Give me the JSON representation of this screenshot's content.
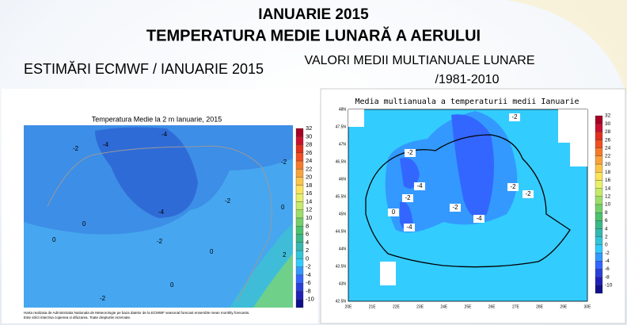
{
  "header": {
    "line1": "IANUARIE 2015",
    "line2": "TEMPERATURA MEDIE LUNARĂ A AERULUI"
  },
  "left": {
    "heading": "ESTIMĂRI ECMWF / IANUARIE 2015",
    "map_title": "Temperatura Medie la 2 m Ianuarie, 2015",
    "colorbar": [
      "32",
      "30",
      "28",
      "26",
      "24",
      "22",
      "20",
      "18",
      "16",
      "14",
      "12",
      "10",
      "8",
      "6",
      "4",
      "2",
      "0",
      "-2",
      "-4",
      "-6",
      "-8",
      "-10"
    ],
    "contour_labels": [
      "-2",
      "-4",
      "-4",
      "-2",
      "-4",
      "-2",
      "0",
      "0",
      "0",
      "-2",
      "0",
      "0",
      "-2",
      "2"
    ],
    "footnote": [
      "Harta realizata de Administratia Nationala de Meteorologie pe baza datelor de la ECMWF seasonal forecast ensemble mean monthly forecasts.",
      "Este strict interzisa copierea si difuzarea. Toate drepturile rezervate."
    ]
  },
  "right": {
    "heading_lines": [
      "VALORI MEDII MULTIANUALE LUNARE",
      "/1981-2010"
    ],
    "map_title": "Media multianuala a temperaturii medii Ianuarie",
    "lat_labels": [
      "48N",
      "47.5N",
      "47N",
      "46.5N",
      "46N",
      "45.5N",
      "45N",
      "44.5N",
      "44N",
      "43.5N",
      "43N",
      "42.5N"
    ],
    "lon_labels": [
      "20E",
      "21E",
      "22E",
      "23E",
      "24E",
      "25E",
      "26E",
      "27E",
      "28E",
      "29E",
      "30E"
    ],
    "colorbar": [
      "32",
      "30",
      "28",
      "26",
      "24",
      "22",
      "20",
      "18",
      "16",
      "14",
      "12",
      "10",
      "8",
      "6",
      "4",
      "2",
      "0",
      "-2",
      "-4",
      "-6",
      "-8",
      "-10"
    ],
    "contour_labels": [
      "-2",
      "-2",
      "-4",
      "-2",
      "-4",
      "0",
      "-2",
      "-4",
      "-2",
      "-2"
    ]
  }
}
